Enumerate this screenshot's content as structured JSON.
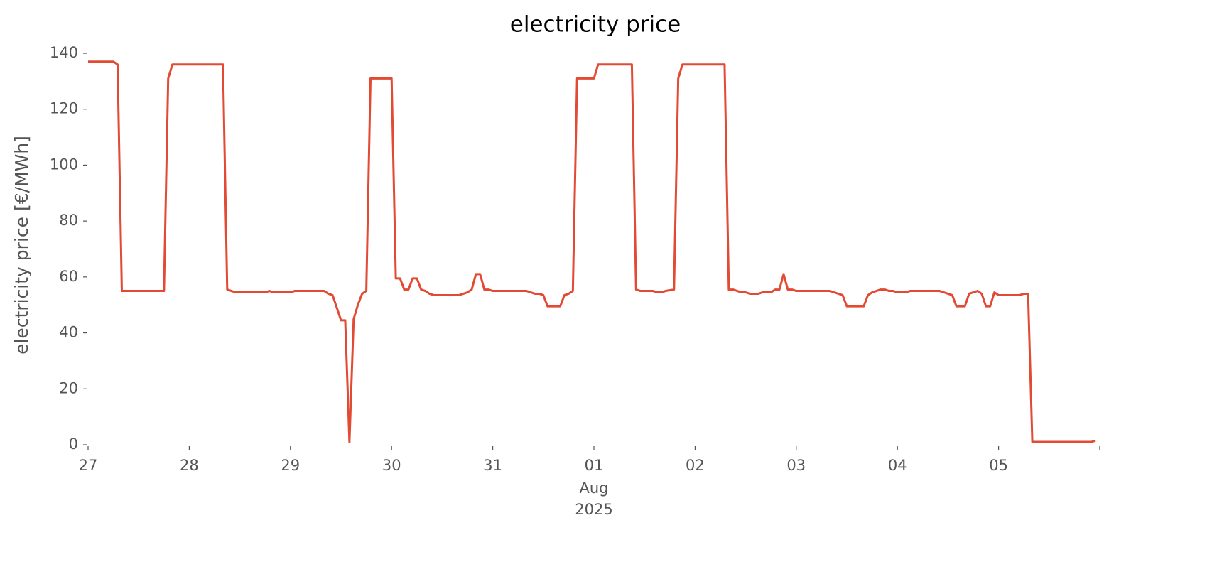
{
  "chart_data": {
    "type": "line",
    "title": "electricity price",
    "ylabel": "electricity price [€/MWh]",
    "color": "#e24a33",
    "xlim": [
      "2025-07-27T00:00",
      "2025-08-06T00:00"
    ],
    "xticks": [
      {
        "value": "2025-07-27",
        "label": "27"
      },
      {
        "value": "2025-07-28",
        "label": "28"
      },
      {
        "value": "2025-07-29",
        "label": "29"
      },
      {
        "value": "2025-07-30",
        "label": "30"
      },
      {
        "value": "2025-07-31",
        "label": "31"
      },
      {
        "value": "2025-08-01",
        "label": "01",
        "sublabel": [
          "Aug",
          "2025"
        ]
      },
      {
        "value": "2025-08-02",
        "label": "02"
      },
      {
        "value": "2025-08-03",
        "label": "03"
      },
      {
        "value": "2025-08-04",
        "label": "04"
      },
      {
        "value": "2025-08-05",
        "label": "05"
      },
      {
        "value": "2025-08-06"
      }
    ],
    "ylim": [
      0,
      140
    ],
    "yticks": [
      0,
      20,
      40,
      60,
      80,
      100,
      120,
      140
    ],
    "x": [
      "2025-07-27T00:00",
      "2025-07-27T06:00",
      "2025-07-27T07:00",
      "2025-07-27T08:00",
      "2025-07-27T18:00",
      "2025-07-27T19:00",
      "2025-07-27T20:00",
      "2025-07-28T08:00",
      "2025-07-28T09:00",
      "2025-07-28T10:00",
      "2025-07-28T11:00",
      "2025-07-28T18:00",
      "2025-07-28T19:00",
      "2025-07-28T20:00",
      "2025-07-29T00:00",
      "2025-07-29T01:00",
      "2025-07-29T08:00",
      "2025-07-29T09:00",
      "2025-07-29T10:00",
      "2025-07-29T11:00",
      "2025-07-29T12:00",
      "2025-07-29T13:00",
      "2025-07-29T14:00",
      "2025-07-29T15:00",
      "2025-07-29T16:00",
      "2025-07-29T17:00",
      "2025-07-29T18:00",
      "2025-07-29T19:00",
      "2025-07-30T00:00",
      "2025-07-30T01:00",
      "2025-07-30T02:00",
      "2025-07-30T03:00",
      "2025-07-30T04:00",
      "2025-07-30T05:00",
      "2025-07-30T06:00",
      "2025-07-30T07:00",
      "2025-07-30T08:00",
      "2025-07-30T09:00",
      "2025-07-30T10:00",
      "2025-07-30T16:00",
      "2025-07-30T17:00",
      "2025-07-30T18:00",
      "2025-07-30T19:00",
      "2025-07-30T20:00",
      "2025-07-30T21:00",
      "2025-07-30T22:00",
      "2025-07-30T23:00",
      "2025-07-31T00:00",
      "2025-07-31T08:00",
      "2025-07-31T09:00",
      "2025-07-31T10:00",
      "2025-07-31T11:00",
      "2025-07-31T12:00",
      "2025-07-31T13:00",
      "2025-07-31T16:00",
      "2025-07-31T17:00",
      "2025-07-31T18:00",
      "2025-07-31T19:00",
      "2025-07-31T20:00",
      "2025-08-01T00:00",
      "2025-08-01T01:00",
      "2025-08-01T09:00",
      "2025-08-01T10:00",
      "2025-08-01T11:00",
      "2025-08-01T14:00",
      "2025-08-01T15:00",
      "2025-08-01T16:00",
      "2025-08-01T17:00",
      "2025-08-01T19:00",
      "2025-08-01T20:00",
      "2025-08-01T21:00",
      "2025-08-02T07:00",
      "2025-08-02T08:00",
      "2025-08-02T09:00",
      "2025-08-02T10:00",
      "2025-08-02T11:00",
      "2025-08-02T12:00",
      "2025-08-02T13:00",
      "2025-08-02T15:00",
      "2025-08-02T16:00",
      "2025-08-02T18:00",
      "2025-08-02T19:00",
      "2025-08-02T20:00",
      "2025-08-02T21:00",
      "2025-08-02T22:00",
      "2025-08-02T23:00",
      "2025-08-03T00:00",
      "2025-08-03T08:00",
      "2025-08-03T09:00",
      "2025-08-03T10:00",
      "2025-08-03T11:00",
      "2025-08-03T12:00",
      "2025-08-03T16:00",
      "2025-08-03T17:00",
      "2025-08-03T18:00",
      "2025-08-03T19:00",
      "2025-08-03T20:00",
      "2025-08-03T21:00",
      "2025-08-03T22:00",
      "2025-08-03T23:00",
      "2025-08-04T00:00",
      "2025-08-04T02:00",
      "2025-08-04T03:00",
      "2025-08-04T10:00",
      "2025-08-04T11:00",
      "2025-08-04T12:00",
      "2025-08-04T13:00",
      "2025-08-04T14:00",
      "2025-08-04T16:00",
      "2025-08-04T17:00",
      "2025-08-04T18:00",
      "2025-08-04T19:00",
      "2025-08-04T20:00",
      "2025-08-04T21:00",
      "2025-08-04T22:00",
      "2025-08-04T23:00",
      "2025-08-05T00:00",
      "2025-08-05T05:00",
      "2025-08-05T06:00",
      "2025-08-05T07:00",
      "2025-08-05T08:00",
      "2025-08-05T22:00",
      "2025-08-05T23:00"
    ],
    "values": [
      137,
      137,
      136,
      55,
      55,
      131,
      136,
      136,
      55.5,
      55,
      54.5,
      54.5,
      55,
      54.5,
      54.5,
      55,
      55,
      54,
      53.5,
      49,
      44.5,
      44.5,
      1,
      45,
      50,
      54,
      55,
      131,
      131,
      59.5,
      59.5,
      55.5,
      55.5,
      59.5,
      59.5,
      55.5,
      55,
      54,
      53.5,
      53.5,
      54,
      54.5,
      55.5,
      61,
      61,
      55.5,
      55.5,
      55,
      55,
      54.5,
      54,
      54,
      53.5,
      49.5,
      49.5,
      53.5,
      54,
      55,
      131,
      131,
      136,
      136,
      55.5,
      55,
      55,
      54.5,
      54.5,
      55,
      55.5,
      131,
      136,
      136,
      55.5,
      55.5,
      55,
      54.5,
      54.5,
      54,
      54,
      54.5,
      54.5,
      55.5,
      55.5,
      61,
      55.5,
      55.5,
      55,
      55,
      54.5,
      54,
      53.5,
      49.5,
      49.5,
      53.5,
      54.5,
      55,
      55.5,
      55.5,
      55,
      55,
      54.5,
      54.5,
      55,
      55,
      54.5,
      54,
      53.5,
      49.5,
      49.5,
      54,
      54.5,
      55,
      54,
      49.5,
      49.5,
      54.5,
      53.5,
      53.5,
      54,
      54,
      1,
      1,
      1.5
    ]
  }
}
